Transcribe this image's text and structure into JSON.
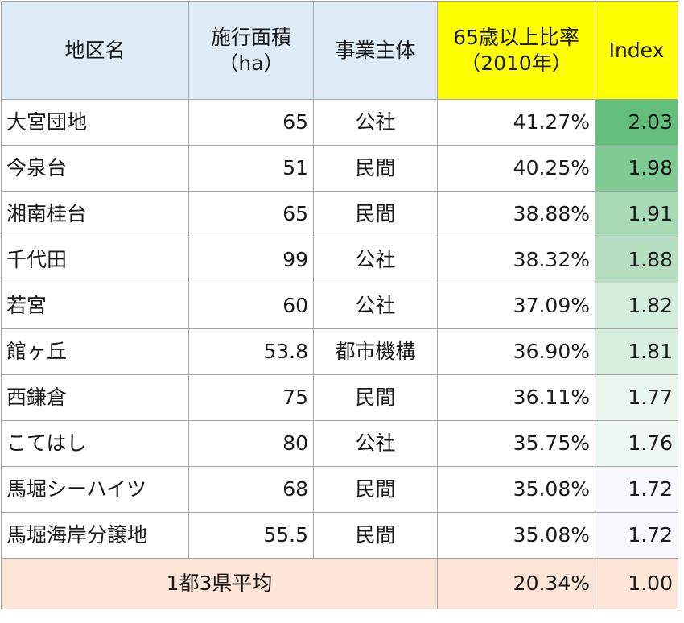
{
  "table": {
    "headers": {
      "area": "地区名",
      "size_line1": "施行面積",
      "size_line2": "（ha）",
      "operator": "事業主体",
      "ratio_line1": "65歳以上比率",
      "ratio_line2": "（2010年）",
      "index": "Index"
    },
    "rows": [
      {
        "area": "大宮団地",
        "size": "65",
        "operator": "公社",
        "ratio": "41.27%",
        "index": "2.03",
        "color": "#63be7b"
      },
      {
        "area": "今泉台",
        "size": "51",
        "operator": "民間",
        "ratio": "40.25%",
        "index": "1.98",
        "color": "#80ca94"
      },
      {
        "area": "湘南桂台",
        "size": "65",
        "operator": "民間",
        "ratio": "38.88%",
        "index": "1.91",
        "color": "#a8dab5"
      },
      {
        "area": "千代田",
        "size": "99",
        "operator": "公社",
        "ratio": "38.32%",
        "index": "1.88",
        "color": "#b5dfc0"
      },
      {
        "area": "若宮",
        "size": "60",
        "operator": "公社",
        "ratio": "37.09%",
        "index": "1.82",
        "color": "#d3ecdb"
      },
      {
        "area": "館ヶ丘",
        "size": "53.8",
        "operator": "都市機構",
        "ratio": "36.90%",
        "index": "1.81",
        "color": "#d8eedf"
      },
      {
        "area": "西鎌倉",
        "size": "75",
        "operator": "民間",
        "ratio": "36.11%",
        "index": "1.77",
        "color": "#eaf5ee"
      },
      {
        "area": "こてはし",
        "size": "80",
        "operator": "公社",
        "ratio": "35.75%",
        "index": "1.76",
        "color": "#eef7f1"
      },
      {
        "area": "馬堀シーハイツ",
        "size": "68",
        "operator": "民間",
        "ratio": "35.08%",
        "index": "1.72",
        "color": "#f8f8fc"
      },
      {
        "area": "馬堀海岸分譲地",
        "size": "55.5",
        "operator": "民間",
        "ratio": "35.08%",
        "index": "1.72",
        "color": "#f8f8fc"
      }
    ],
    "average": {
      "label": "1都3県平均",
      "ratio": "20.34%",
      "index": "1.00"
    }
  }
}
